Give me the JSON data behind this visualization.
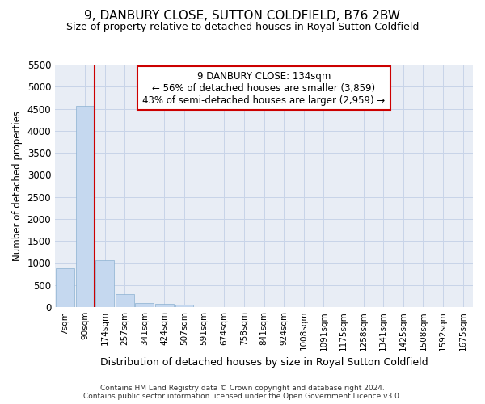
{
  "title": "9, DANBURY CLOSE, SUTTON COLDFIELD, B76 2BW",
  "subtitle": "Size of property relative to detached houses in Royal Sutton Coldfield",
  "xlabel": "Distribution of detached houses by size in Royal Sutton Coldfield",
  "ylabel": "Number of detached properties",
  "footnote1": "Contains HM Land Registry data © Crown copyright and database right 2024.",
  "footnote2": "Contains public sector information licensed under the Open Government Licence v3.0.",
  "bar_labels": [
    "7sqm",
    "90sqm",
    "174sqm",
    "257sqm",
    "341sqm",
    "424sqm",
    "507sqm",
    "591sqm",
    "674sqm",
    "758sqm",
    "841sqm",
    "924sqm",
    "1008sqm",
    "1091sqm",
    "1175sqm",
    "1258sqm",
    "1341sqm",
    "1425sqm",
    "1508sqm",
    "1592sqm",
    "1675sqm"
  ],
  "bar_values": [
    880,
    4560,
    1060,
    290,
    90,
    80,
    50,
    0,
    0,
    0,
    0,
    0,
    0,
    0,
    0,
    0,
    0,
    0,
    0,
    0,
    0
  ],
  "bar_color": "#c5d8ef",
  "bar_edge_color": "#c5d8ef",
  "grid_color": "#c8d4e8",
  "bg_color": "#e8edf5",
  "vline_color": "#cc0000",
  "annotation_text": "9 DANBURY CLOSE: 134sqm\n← 56% of detached houses are smaller (3,859)\n43% of semi-detached houses are larger (2,959) →",
  "annotation_box_facecolor": "#ffffff",
  "annotation_box_edgecolor": "#cc0000",
  "ylim": [
    0,
    5500
  ],
  "yticks": [
    0,
    500,
    1000,
    1500,
    2000,
    2500,
    3000,
    3500,
    4000,
    4500,
    5000,
    5500
  ]
}
